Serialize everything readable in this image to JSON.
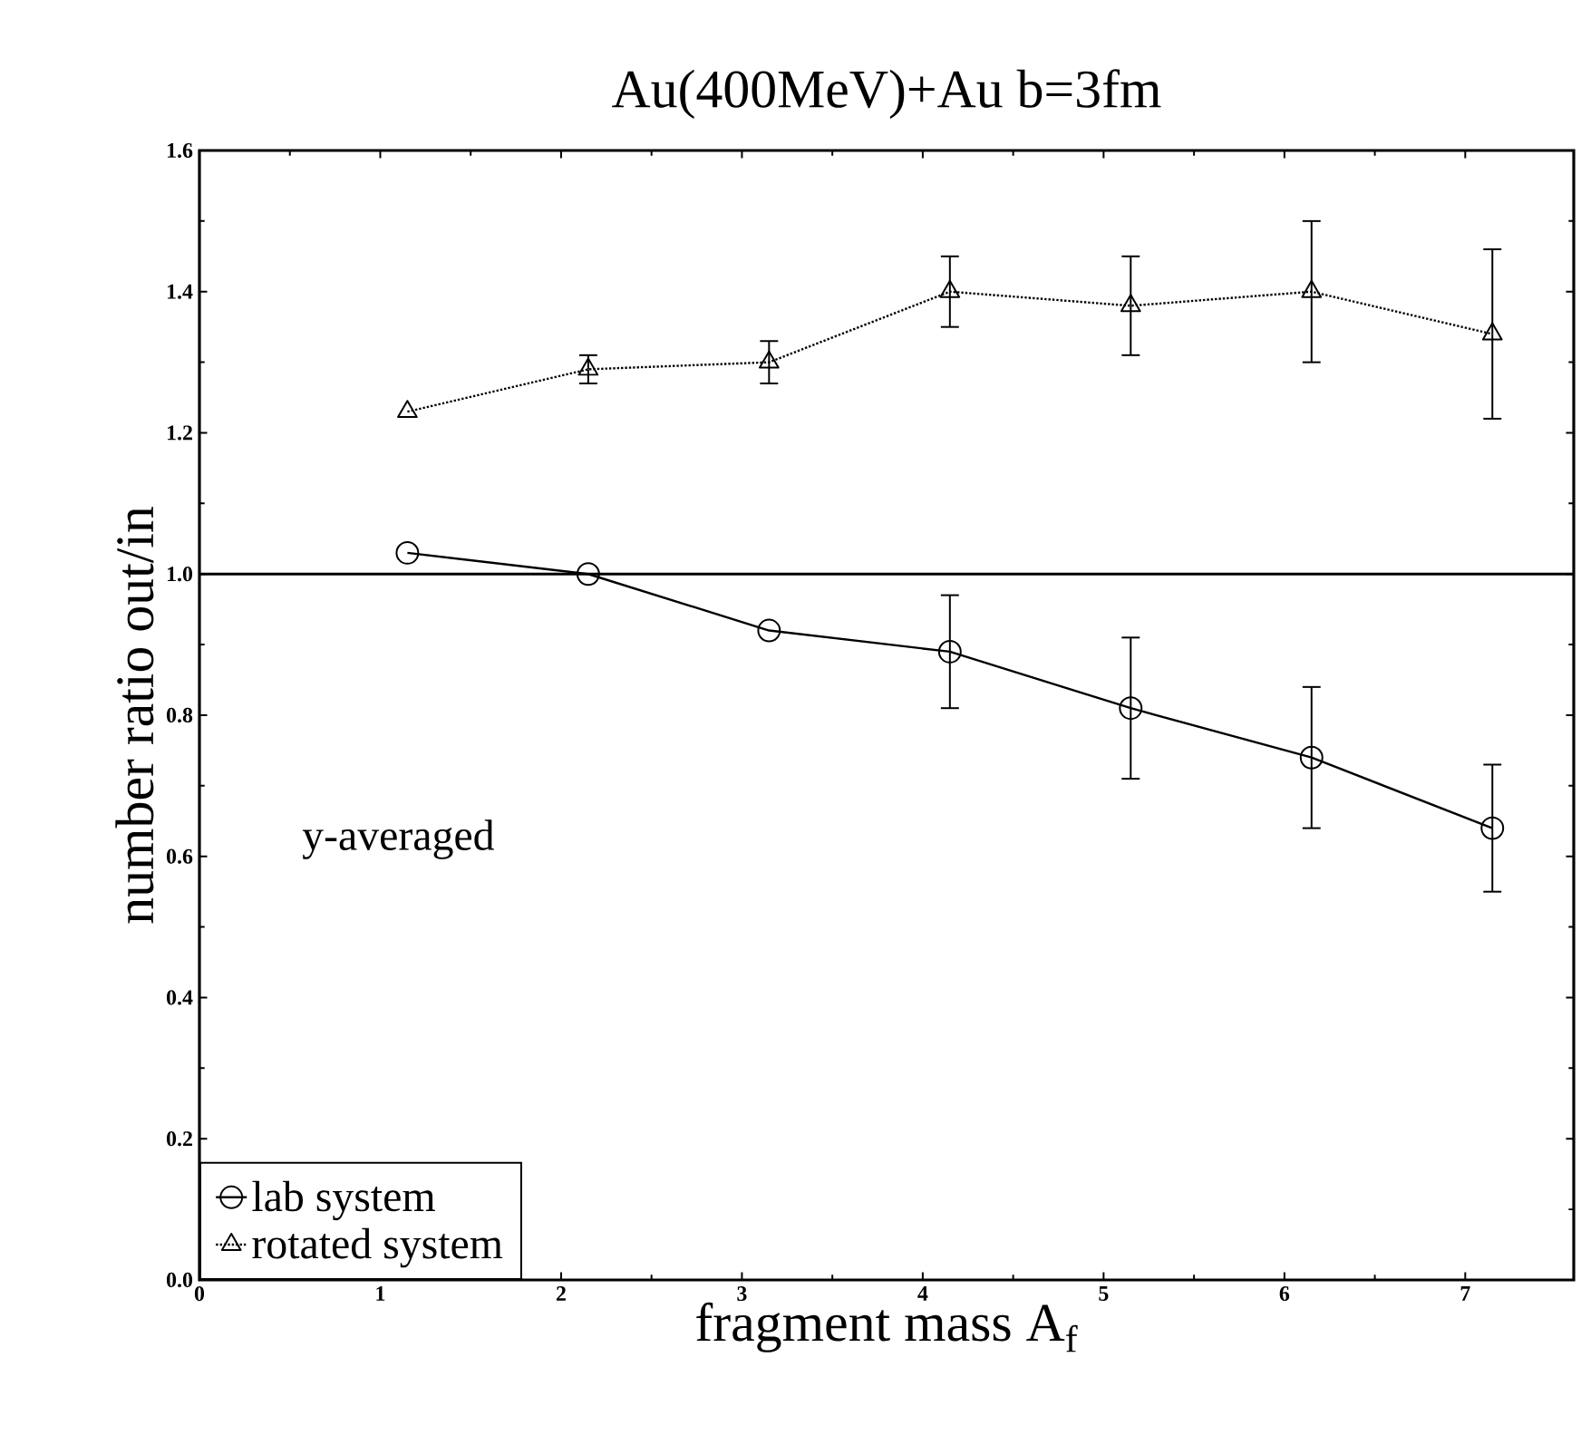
{
  "chart_data": {
    "type": "line",
    "title": "Au(400MeV)+Au b=3fm",
    "xlabel": "fragment mass A$_{f}$",
    "ylabel": "number ratio out/in",
    "annotations": [
      "y-averaged"
    ],
    "xlim": [
      0,
      7.6
    ],
    "xticks": [
      0,
      1,
      2,
      3,
      4,
      5,
      6,
      7
    ],
    "ylim": [
      0,
      1.6
    ],
    "yticks": [
      {
        "value": 0,
        "label": "0.0"
      },
      {
        "value": 0.2,
        "label": "0.2"
      },
      {
        "value": 0.4,
        "label": "0.4"
      },
      {
        "value": 0.6,
        "label": "0.6"
      },
      {
        "value": 0.8,
        "label": "0.8"
      },
      {
        "value": 1.0,
        "label": "1.0"
      },
      {
        "value": 1.2,
        "label": "1.2"
      },
      {
        "value": 1.4,
        "label": "1.4"
      },
      {
        "value": 1.6,
        "label": "1.6"
      }
    ],
    "x": [
      1.15,
      2.15,
      3.15,
      4.15,
      5.15,
      6.15,
      7.15
    ],
    "series": [
      {
        "name": "lab system",
        "color": "#000000",
        "marker": "circle",
        "line_style": "solid",
        "values": [
          1.03,
          1.0,
          0.92,
          0.89,
          0.81,
          0.74,
          0.64
        ],
        "errors": [
          null,
          null,
          null,
          0.08,
          0.1,
          0.1,
          0.09
        ]
      },
      {
        "name": "rotated system",
        "color": "#000000",
        "marker": "triangle",
        "line_style": "dotted",
        "values": [
          1.23,
          1.29,
          1.3,
          1.4,
          1.38,
          1.4,
          1.34
        ],
        "errors": [
          null,
          0.02,
          0.03,
          0.05,
          0.07,
          0.1,
          0.12
        ]
      }
    ],
    "ref_lines": [
      {
        "axis": "y",
        "value": 1.0,
        "color": "#000000",
        "line_style": "solid"
      }
    ],
    "legend": "bottom left"
  }
}
